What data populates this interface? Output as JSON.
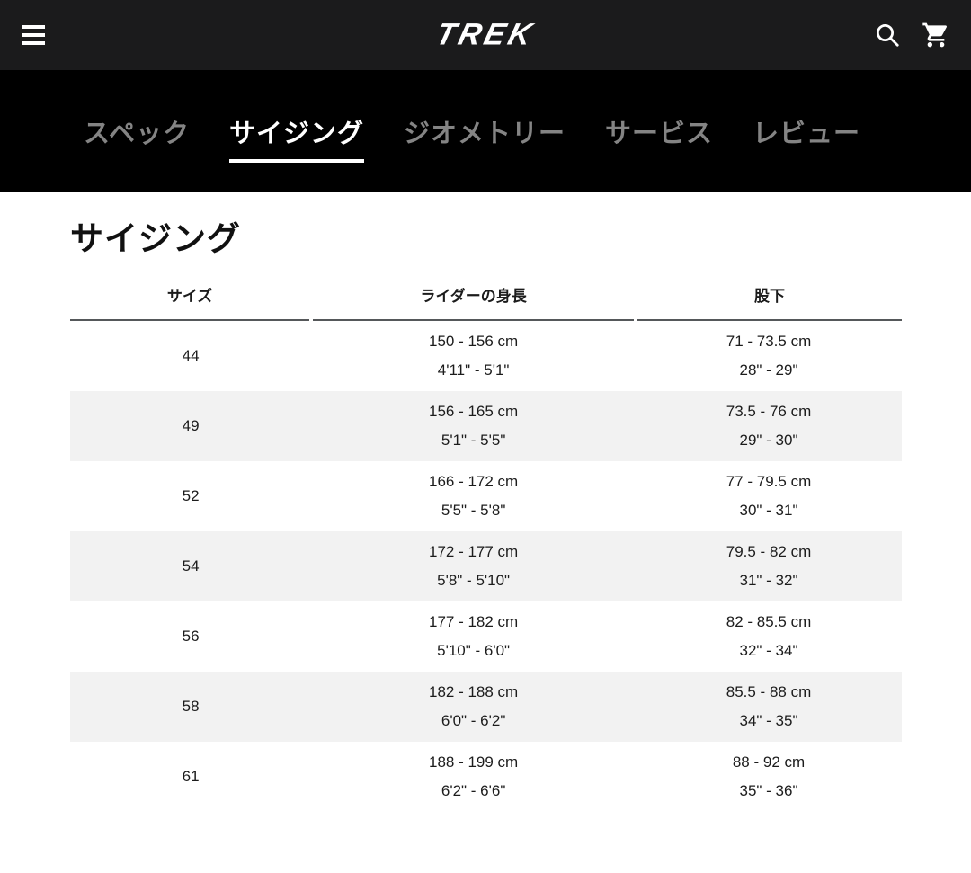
{
  "header": {
    "brand": "TREK",
    "menu_icon": "hamburger-menu",
    "search_icon": "magnifier",
    "cart_icon": "shopping-cart"
  },
  "nav": {
    "tabs": [
      {
        "label": "スペック",
        "active": false
      },
      {
        "label": "サイジング",
        "active": true
      },
      {
        "label": "ジオメトリー",
        "active": false
      },
      {
        "label": "サービス",
        "active": false
      },
      {
        "label": "レビュー",
        "active": false
      }
    ]
  },
  "main": {
    "title": "サイジング",
    "table": {
      "columns": [
        "サイズ",
        "ライダーの身長",
        "股下"
      ],
      "rows": [
        {
          "size": "44",
          "height_cm": "150 - 156 cm",
          "height_ft": "4'11\" - 5'1\"",
          "inseam_cm": "71 - 73.5 cm",
          "inseam_in": "28\" - 29\""
        },
        {
          "size": "49",
          "height_cm": "156 - 165 cm",
          "height_ft": "5'1\" - 5'5\"",
          "inseam_cm": "73.5 - 76 cm",
          "inseam_in": "29\" - 30\""
        },
        {
          "size": "52",
          "height_cm": "166 - 172 cm",
          "height_ft": "5'5\" - 5'8\"",
          "inseam_cm": "77 - 79.5 cm",
          "inseam_in": "30\" - 31\""
        },
        {
          "size": "54",
          "height_cm": "172 - 177 cm",
          "height_ft": "5'8\" - 5'10\"",
          "inseam_cm": "79.5 - 82 cm",
          "inseam_in": "31\" - 32\""
        },
        {
          "size": "56",
          "height_cm": "177 - 182 cm",
          "height_ft": "5'10\" - 6'0\"",
          "inseam_cm": "82 - 85.5 cm",
          "inseam_in": "32\" - 34\""
        },
        {
          "size": "58",
          "height_cm": "182 - 188 cm",
          "height_ft": "6'0\" - 6'2\"",
          "inseam_cm": "85.5 - 88 cm",
          "inseam_in": "34\" - 35\""
        },
        {
          "size": "61",
          "height_cm": "188 - 199 cm",
          "height_ft": "6'2\" - 6'6\"",
          "inseam_cm": "88 - 92 cm",
          "inseam_in": "35\" - 36\""
        }
      ]
    }
  },
  "colors": {
    "header_bg": "#1b1b1c",
    "nav_bg": "#000000",
    "active_tab": "#ffffff",
    "inactive_tab": "#848484",
    "row_alt_bg": "#f2f2f2",
    "table_border": "#55585a",
    "text": "#1c1c1c"
  }
}
